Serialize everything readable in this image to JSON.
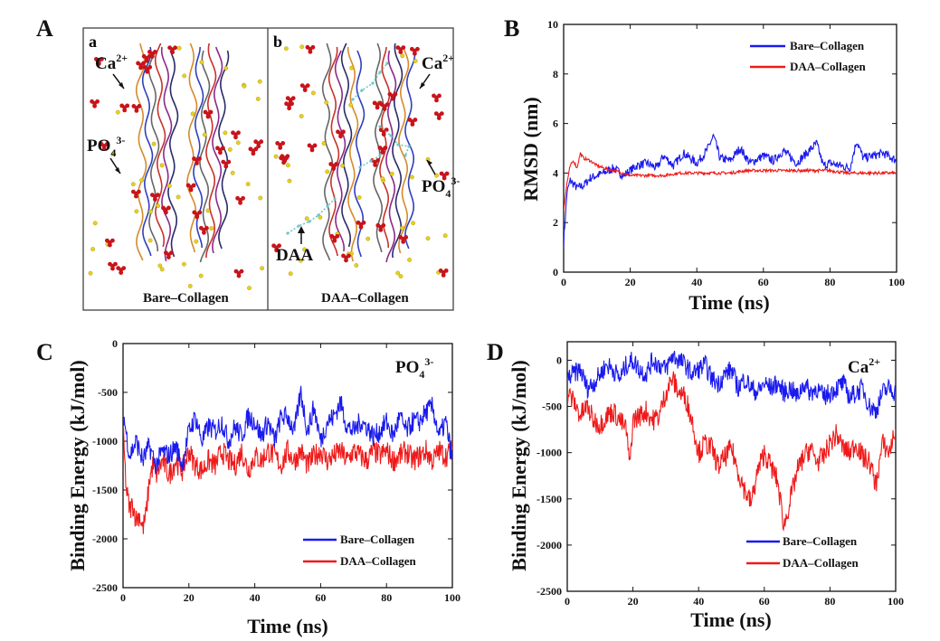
{
  "colors": {
    "bare": "#1a1aee",
    "daa": "#ee1a1a",
    "ca_ion": "#e8d21a",
    "po4_ion": "#c8141a",
    "daa_mol": "#6ec6c8"
  },
  "panel_a": {
    "letter": "A",
    "sub_a": {
      "letter": "a",
      "caption": "Bare–Collagen",
      "ca_label": "Ca",
      "ca_sup": "2+",
      "po4_label": "PO",
      "po4_sub": "4",
      "po4_sup": "3-"
    },
    "sub_b": {
      "letter": "b",
      "caption": "DAA–Collagen",
      "ca_label": "Ca",
      "ca_sup": "2+",
      "po4_label": "PO",
      "po4_sub": "4",
      "po4_sup": "3-",
      "daa_label": "DAA"
    }
  },
  "chart_data": [
    {
      "panel": "B",
      "type": "line",
      "xlabel": "Time  (ns)",
      "ylabel": "RMSD (nm)",
      "xlim": [
        0,
        100
      ],
      "ylim": [
        0,
        10
      ],
      "xticks": [
        "0",
        "20",
        "40",
        "60",
        "80",
        "100"
      ],
      "yticks": [
        "0",
        "2",
        "4",
        "6",
        "8",
        "10"
      ],
      "legend": "top-right",
      "series": [
        {
          "name": "Bare–Collagen",
          "color": "#1a1aee",
          "x": [
            0,
            1,
            2,
            4,
            6,
            8,
            10,
            12,
            15,
            18,
            20,
            22,
            25,
            28,
            30,
            33,
            36,
            40,
            43,
            45,
            47,
            50,
            53,
            56,
            60,
            63,
            66,
            70,
            73,
            76,
            78,
            80,
            83,
            86,
            88,
            90,
            93,
            96,
            100
          ],
          "y": [
            1.2,
            3.2,
            3.7,
            3.4,
            3.5,
            3.8,
            3.9,
            4.0,
            4.2,
            3.9,
            4.1,
            4.3,
            4.4,
            4.2,
            4.7,
            4.3,
            4.8,
            4.4,
            4.9,
            5.5,
            4.6,
            4.5,
            5.0,
            4.4,
            4.7,
            4.5,
            4.9,
            4.4,
            4.8,
            5.2,
            4.3,
            4.4,
            4.3,
            4.2,
            5.3,
            4.6,
            4.7,
            4.8,
            4.5
          ]
        },
        {
          "name": "DAA–Collagen",
          "color": "#ee1a1a",
          "x": [
            0,
            1,
            2,
            3,
            4,
            5,
            6,
            8,
            10,
            12,
            15,
            18,
            20,
            25,
            30,
            35,
            40,
            45,
            50,
            55,
            60,
            65,
            70,
            75,
            80,
            85,
            90,
            95,
            100
          ],
          "y": [
            2.5,
            3.6,
            4.3,
            4.5,
            4.2,
            4.8,
            4.6,
            4.5,
            4.3,
            4.2,
            4.1,
            4.0,
            3.9,
            3.9,
            3.9,
            4.0,
            4.0,
            4.0,
            4.0,
            4.1,
            4.1,
            4.1,
            4.1,
            4.1,
            4.1,
            4.0,
            4.0,
            4.0,
            4.0
          ]
        }
      ]
    },
    {
      "panel": "C",
      "type": "line",
      "annotation": "PO",
      "annotation_sub": "4",
      "annotation_sup": "3-",
      "xlabel": "Time  (ns)",
      "ylabel": "Binding Energy (kJ/mol)",
      "xlim": [
        0,
        100
      ],
      "ylim": [
        -2500,
        0
      ],
      "xticks": [
        "0",
        "20",
        "40",
        "60",
        "80",
        "100"
      ],
      "yticks": [
        "0",
        "-500",
        "-1000",
        "-1500",
        "-2000",
        "-2500"
      ],
      "legend": "bottom-right",
      "series": [
        {
          "name": "Bare–Collagen",
          "color": "#1a1aee",
          "x": [
            0,
            2,
            4,
            6,
            8,
            10,
            12,
            14,
            16,
            18,
            20,
            22,
            24,
            26,
            28,
            30,
            32,
            34,
            36,
            38,
            40,
            42,
            44,
            46,
            48,
            50,
            52,
            54,
            56,
            58,
            60,
            62,
            64,
            66,
            68,
            70,
            72,
            74,
            76,
            78,
            80,
            82,
            84,
            86,
            88,
            90,
            92,
            94,
            96,
            98,
            100
          ],
          "y": [
            -700,
            -1150,
            -1000,
            -1200,
            -1050,
            -1250,
            -1100,
            -1150,
            -1050,
            -1250,
            -900,
            -750,
            -1000,
            -850,
            -900,
            -800,
            -1000,
            -850,
            -950,
            -750,
            -800,
            -950,
            -800,
            -1000,
            -750,
            -750,
            -900,
            -500,
            -900,
            -650,
            -1000,
            -800,
            -750,
            -600,
            -850,
            -900,
            -800,
            -850,
            -950,
            -900,
            -800,
            -950,
            -750,
            -900,
            -800,
            -800,
            -700,
            -650,
            -950,
            -800,
            -1200
          ]
        },
        {
          "name": "DAA–Collagen",
          "color": "#ee1a1a",
          "x": [
            0,
            1,
            2,
            3,
            4,
            5,
            6,
            7,
            8,
            9,
            10,
            12,
            14,
            16,
            18,
            20,
            22,
            24,
            26,
            28,
            30,
            32,
            34,
            36,
            38,
            40,
            42,
            44,
            46,
            48,
            50,
            52,
            54,
            56,
            58,
            60,
            62,
            64,
            66,
            68,
            70,
            72,
            74,
            76,
            78,
            80,
            82,
            84,
            86,
            88,
            90,
            92,
            94,
            96,
            98,
            100
          ],
          "y": [
            -900,
            -1500,
            -1700,
            -1650,
            -1800,
            -1750,
            -1900,
            -1750,
            -1400,
            -1250,
            -1350,
            -1200,
            -1350,
            -1200,
            -1300,
            -1100,
            -1250,
            -1300,
            -1200,
            -1250,
            -1100,
            -1200,
            -1250,
            -1100,
            -1300,
            -1150,
            -1200,
            -1100,
            -1150,
            -1250,
            -1100,
            -1200,
            -1100,
            -1250,
            -1150,
            -1100,
            -1200,
            -1150,
            -1100,
            -1200,
            -1100,
            -1150,
            -1200,
            -1100,
            -1150,
            -1100,
            -1200,
            -1150,
            -1100,
            -1200,
            -1150,
            -1100,
            -1200,
            -1100,
            -1150,
            -1100
          ]
        }
      ]
    },
    {
      "panel": "D",
      "type": "line",
      "annotation": "Ca",
      "annotation_sup": "2+",
      "xlabel": "Time  (ns)",
      "ylabel": "Binding Energy (kJ/mol)",
      "xlim": [
        0,
        100
      ],
      "ylim": [
        -2500,
        200
      ],
      "xticks": [
        "0",
        "20",
        "40",
        "60",
        "80",
        "100"
      ],
      "yticks": [
        "0",
        "-500",
        "-1000",
        "-1500",
        "-2000",
        "-2500"
      ],
      "legend": "bottom-right",
      "series": [
        {
          "name": "Bare–Collagen",
          "color": "#1a1aee",
          "x": [
            0,
            2,
            4,
            6,
            8,
            10,
            12,
            14,
            16,
            18,
            20,
            22,
            24,
            26,
            28,
            30,
            32,
            34,
            36,
            38,
            40,
            42,
            44,
            46,
            48,
            50,
            52,
            54,
            56,
            58,
            60,
            62,
            64,
            66,
            68,
            70,
            72,
            74,
            76,
            78,
            80,
            82,
            84,
            86,
            88,
            90,
            92,
            94,
            96,
            98,
            100
          ],
          "y": [
            -200,
            -150,
            -100,
            -300,
            -250,
            -150,
            -50,
            -100,
            -200,
            -50,
            0,
            -100,
            -150,
            0,
            -50,
            -100,
            50,
            0,
            -50,
            -150,
            -100,
            -50,
            -200,
            -250,
            -150,
            -100,
            -300,
            -200,
            -300,
            -350,
            -250,
            -300,
            -250,
            -350,
            -300,
            -400,
            -250,
            -350,
            -300,
            -400,
            -350,
            -300,
            -250,
            -400,
            -350,
            -300,
            -500,
            -550,
            -350,
            -300,
            -350
          ]
        },
        {
          "name": "DAA–Collagen",
          "color": "#ee1a1a",
          "x": [
            0,
            2,
            4,
            6,
            8,
            10,
            12,
            14,
            16,
            18,
            19,
            20,
            22,
            24,
            26,
            28,
            30,
            32,
            34,
            36,
            38,
            40,
            42,
            44,
            46,
            48,
            50,
            52,
            54,
            56,
            58,
            60,
            62,
            64,
            66,
            68,
            70,
            72,
            74,
            76,
            78,
            80,
            82,
            84,
            86,
            88,
            90,
            92,
            94,
            96,
            98,
            100
          ],
          "y": [
            -350,
            -450,
            -600,
            -500,
            -650,
            -700,
            -600,
            -550,
            -650,
            -750,
            -1150,
            -650,
            -600,
            -550,
            -650,
            -600,
            -350,
            -200,
            -350,
            -400,
            -650,
            -1000,
            -900,
            -950,
            -1150,
            -1050,
            -950,
            -1200,
            -1400,
            -1550,
            -1200,
            -1000,
            -1150,
            -1300,
            -1800,
            -1500,
            -1200,
            -1050,
            -950,
            -1100,
            -1050,
            -900,
            -800,
            -950,
            -1000,
            -900,
            -1050,
            -1100,
            -1350,
            -900,
            -1000,
            -750
          ]
        }
      ]
    }
  ]
}
